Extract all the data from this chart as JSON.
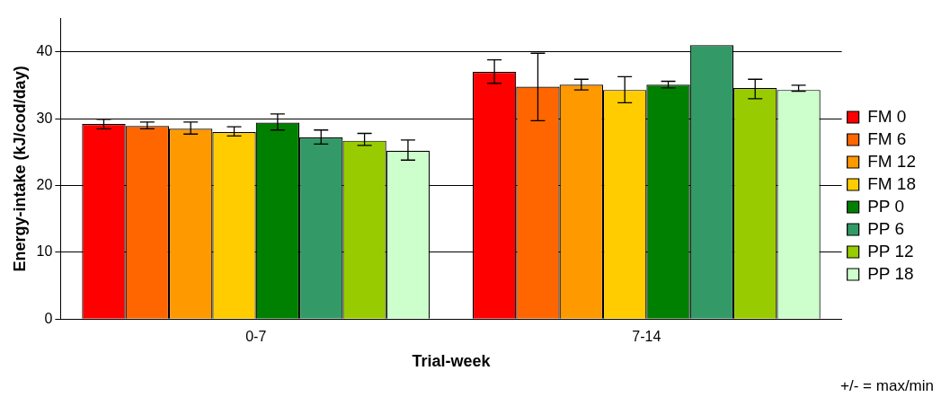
{
  "chart_data": {
    "type": "bar",
    "xlabel": "Trial-week",
    "ylabel": "Energy-intake (kJ/cod/day)",
    "categories": [
      "0-7",
      "7-14"
    ],
    "ylim": [
      0,
      45
    ],
    "yticks": [
      0,
      10,
      20,
      30,
      40
    ],
    "grid": "y",
    "legend": "right",
    "annotations": [
      "+/- = max/min"
    ],
    "series": [
      {
        "name": "FM 0",
        "color": "#ff0000",
        "values": [
          29.2,
          37.0
        ],
        "errors": [
          [
            28.5,
            29.9
          ],
          [
            35.3,
            38.8
          ]
        ]
      },
      {
        "name": "FM 6",
        "color": "#ff6600",
        "values": [
          28.9,
          34.8
        ],
        "errors": [
          [
            28.5,
            29.5
          ],
          [
            29.7,
            39.8
          ]
        ]
      },
      {
        "name": "FM 12",
        "color": "#ff9900",
        "values": [
          28.5,
          35.1
        ],
        "errors": [
          [
            27.7,
            29.5
          ],
          [
            34.3,
            35.9
          ]
        ]
      },
      {
        "name": "FM 18",
        "color": "#ffcc00",
        "values": [
          28.0,
          34.3
        ],
        "errors": [
          [
            27.4,
            28.8
          ],
          [
            32.4,
            36.3
          ]
        ]
      },
      {
        "name": "PP 0",
        "color": "#008000",
        "values": [
          29.4,
          35.1
        ],
        "errors": [
          [
            28.3,
            30.7
          ],
          [
            34.6,
            35.6
          ]
        ]
      },
      {
        "name": "PP 6",
        "color": "#339966",
        "values": [
          27.2,
          41.0
        ],
        "errors": [
          [
            26.2,
            28.3
          ],
          null
        ]
      },
      {
        "name": "PP 12",
        "color": "#99cc00",
        "values": [
          26.7,
          34.6
        ],
        "errors": [
          [
            26.0,
            27.8
          ],
          [
            33.0,
            35.9
          ]
        ]
      },
      {
        "name": "PP 18",
        "color": "#ccffcc",
        "values": [
          25.2,
          34.3
        ],
        "errors": [
          [
            23.8,
            26.8
          ],
          [
            34.1,
            35.0
          ]
        ]
      }
    ]
  }
}
